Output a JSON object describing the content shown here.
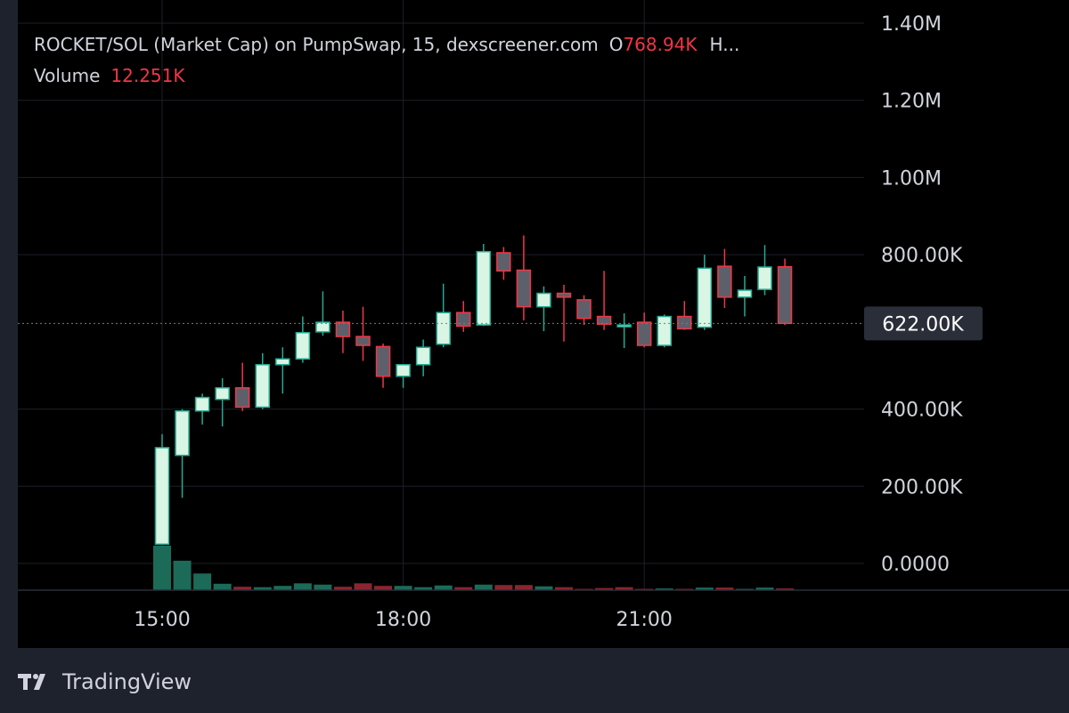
{
  "legend": {
    "pair": "ROCKET/SOL (Market Cap) on PumpSwap, 15, dexscreener.com",
    "open_label": "O",
    "open_value": "768.94K",
    "high_label": "H...",
    "volume_label": "Volume",
    "volume_value": "12.251K"
  },
  "branding": {
    "name": "TradingView",
    "icon": "tradingview-logo-icon"
  },
  "colors": {
    "up": "#d9f5e3",
    "up_wick": "#22ab94",
    "down_body": "#5d606b",
    "down_border": "#f23645",
    "vol_up": "#1b6b58",
    "vol_down": "#8a2530",
    "grid": "#1c1f28",
    "price_badge": "#2a2e39"
  },
  "chart_data": {
    "type": "candlestick",
    "interval": "15",
    "ylim": [
      0,
      1400000
    ],
    "y_ticks": [
      {
        "value": 0,
        "label": "0.0000"
      },
      {
        "value": 200000,
        "label": "200.00K"
      },
      {
        "value": 400000,
        "label": "400.00K"
      },
      {
        "value": 800000,
        "label": "800.00K"
      },
      {
        "value": 1000000,
        "label": "1.00M"
      },
      {
        "value": 1200000,
        "label": "1.20M"
      },
      {
        "value": 1400000,
        "label": "1.40M"
      }
    ],
    "x_ticks": [
      {
        "index": 0,
        "label": "15:00"
      },
      {
        "index": 12,
        "label": "18:00"
      },
      {
        "index": 24,
        "label": "21:00"
      }
    ],
    "current_price": {
      "value": 622000,
      "label": "622.00K"
    },
    "candles": [
      {
        "o": 50000,
        "h": 335000,
        "l": 50000,
        "c": 300000
      },
      {
        "o": 280000,
        "h": 400000,
        "l": 170000,
        "c": 395000
      },
      {
        "o": 395000,
        "h": 440000,
        "l": 360000,
        "c": 430000
      },
      {
        "o": 425000,
        "h": 480000,
        "l": 355000,
        "c": 455000
      },
      {
        "o": 455000,
        "h": 520000,
        "l": 395000,
        "c": 405000
      },
      {
        "o": 405000,
        "h": 545000,
        "l": 400000,
        "c": 515000
      },
      {
        "o": 515000,
        "h": 560000,
        "l": 440000,
        "c": 530000
      },
      {
        "o": 530000,
        "h": 640000,
        "l": 520000,
        "c": 598000
      },
      {
        "o": 600000,
        "h": 705000,
        "l": 590000,
        "c": 625000
      },
      {
        "o": 625000,
        "h": 655000,
        "l": 545000,
        "c": 588000
      },
      {
        "o": 588000,
        "h": 665000,
        "l": 525000,
        "c": 565000
      },
      {
        "o": 562000,
        "h": 570000,
        "l": 455000,
        "c": 485000
      },
      {
        "o": 485000,
        "h": 510000,
        "l": 455000,
        "c": 515000
      },
      {
        "o": 515000,
        "h": 580000,
        "l": 485000,
        "c": 560000
      },
      {
        "o": 568000,
        "h": 725000,
        "l": 560000,
        "c": 650000
      },
      {
        "o": 650000,
        "h": 680000,
        "l": 600000,
        "c": 615000
      },
      {
        "o": 618000,
        "h": 828000,
        "l": 615000,
        "c": 808000
      },
      {
        "o": 805000,
        "h": 820000,
        "l": 735000,
        "c": 758000
      },
      {
        "o": 760000,
        "h": 850000,
        "l": 630000,
        "c": 665000
      },
      {
        "o": 665000,
        "h": 718000,
        "l": 602000,
        "c": 700000
      },
      {
        "o": 700000,
        "h": 722000,
        "l": 575000,
        "c": 690000
      },
      {
        "o": 683000,
        "h": 695000,
        "l": 618000,
        "c": 635000
      },
      {
        "o": 640000,
        "h": 758000,
        "l": 605000,
        "c": 620000
      },
      {
        "o": 615000,
        "h": 648000,
        "l": 558000,
        "c": 618000
      },
      {
        "o": 625000,
        "h": 650000,
        "l": 560000,
        "c": 565000
      },
      {
        "o": 565000,
        "h": 645000,
        "l": 560000,
        "c": 640000
      },
      {
        "o": 640000,
        "h": 680000,
        "l": 605000,
        "c": 608000
      },
      {
        "o": 612000,
        "h": 800000,
        "l": 605000,
        "c": 765000
      },
      {
        "o": 770000,
        "h": 815000,
        "l": 662000,
        "c": 690000
      },
      {
        "o": 690000,
        "h": 745000,
        "l": 640000,
        "c": 708000
      },
      {
        "o": 710000,
        "h": 825000,
        "l": 695000,
        "c": 768000
      },
      {
        "o": 768940,
        "h": 790000,
        "l": 618000,
        "c": 622000
      }
    ],
    "volume": [
      100,
      69,
      39,
      15,
      8,
      7,
      10,
      16,
      13,
      8,
      16,
      10,
      10,
      7,
      11,
      7,
      13,
      12,
      12,
      9,
      7,
      3,
      5,
      7,
      3,
      4,
      3,
      6,
      6,
      3,
      6,
      4
    ],
    "volume_direction": [
      "up",
      "up",
      "up",
      "up",
      "down",
      "up",
      "up",
      "up",
      "up",
      "down",
      "down",
      "down",
      "up",
      "up",
      "up",
      "down",
      "up",
      "down",
      "down",
      "up",
      "down",
      "down",
      "down",
      "down",
      "down",
      "up",
      "down",
      "up",
      "down",
      "up",
      "up",
      "down"
    ]
  }
}
